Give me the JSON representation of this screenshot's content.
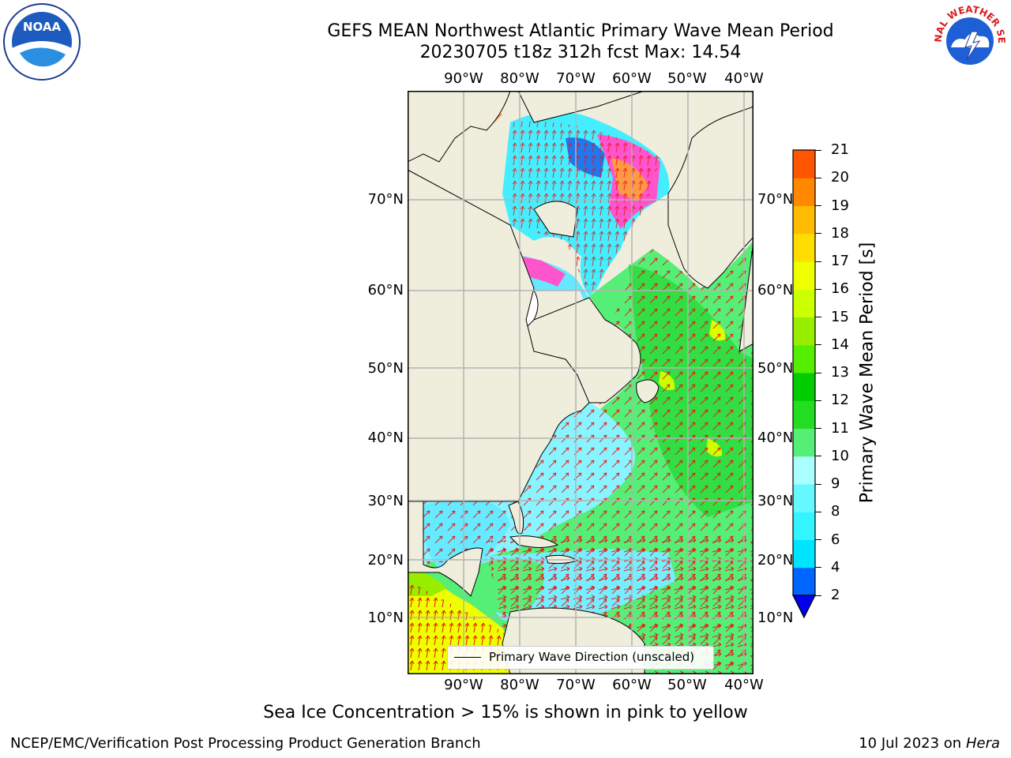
{
  "title": {
    "line1": "GEFS MEAN Northwest Atlantic Primary Wave Mean Period",
    "line2": "20230705 t18z 312h fcst   Max: 14.54"
  },
  "map": {
    "lon_labels": [
      "90°W",
      "80°W",
      "70°W",
      "60°W",
      "50°W",
      "40°W"
    ],
    "lat_labels": [
      "70°N",
      "60°N",
      "50°N",
      "40°N",
      "30°N",
      "20°N",
      "10°N"
    ],
    "legend_label": "Primary Wave Direction (unscaled)",
    "colors": {
      "land": "#efeddc",
      "arrow": "#ee1111",
      "grid": "#b4b4b4",
      "coast": "#000000"
    }
  },
  "colorbar": {
    "title": "Primary Wave Mean Period [s]",
    "ticks": [
      "2",
      "4",
      "6",
      "8",
      "9",
      "10",
      "11",
      "12",
      "13",
      "14",
      "15",
      "16",
      "17",
      "18",
      "19",
      "20",
      "21"
    ],
    "bands": [
      "#0066ff",
      "#00e5ff",
      "#33f5ff",
      "#66f8ff",
      "#aaffff",
      "#55ee77",
      "#22dd22",
      "#00cc00",
      "#55ee00",
      "#99ee00",
      "#ccff00",
      "#eeff00",
      "#ffdd00",
      "#ffbb00",
      "#ff8800",
      "#ff5500",
      "#ff2200",
      "#ff0000"
    ],
    "extend_color": "#0000ee"
  },
  "ice_note": "Sea Ice Concentration > 15% is shown in pink to yellow",
  "footer": {
    "left": "NCEP/EMC/Verification Post Processing Product Generation Branch",
    "date": "10 Jul 2023 on ",
    "machine": "Hera"
  },
  "logos": {
    "noaa": "NOAA",
    "nws": "NATIONAL WEATHER SERVICE"
  }
}
